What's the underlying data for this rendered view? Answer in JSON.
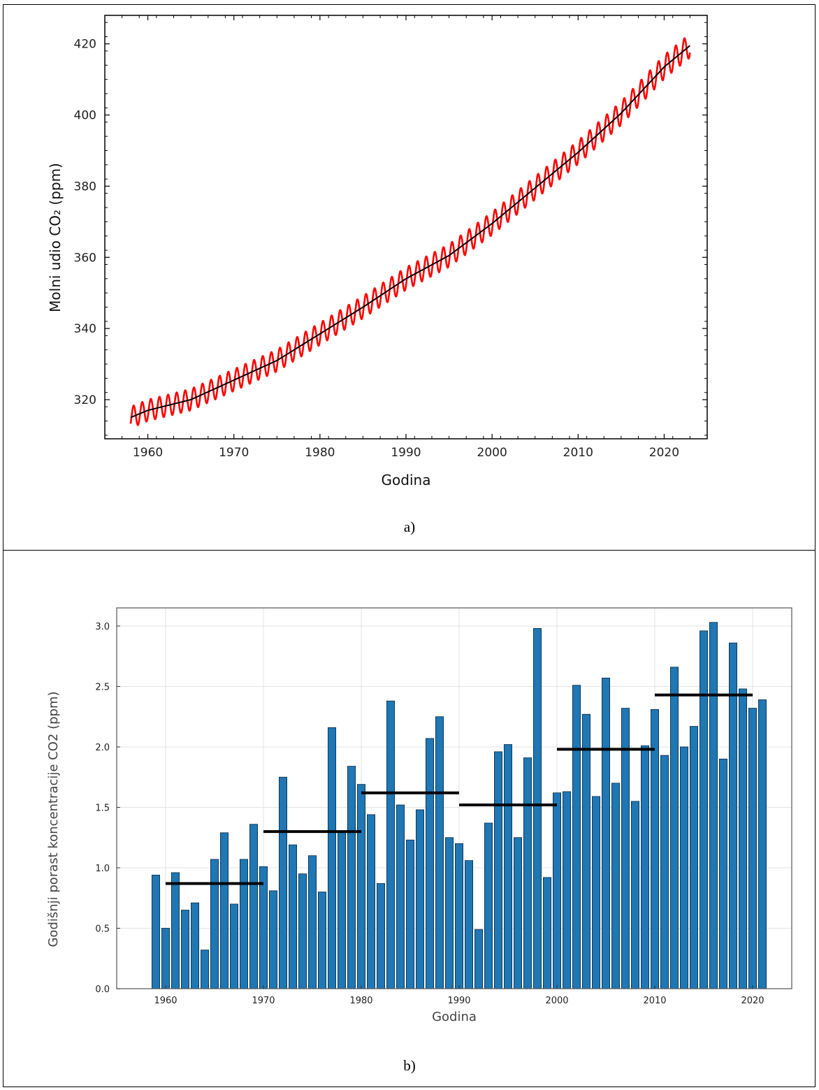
{
  "captions": {
    "a": "a)",
    "b": "b)"
  },
  "colors": {
    "seasonal": "#ff0000",
    "trend": "#000000",
    "bar": "#1f77b4",
    "bar_edge": "#0b2a44",
    "decade_mean": "#000000"
  },
  "chart_data": [
    {
      "type": "line",
      "xlabel": "Godina",
      "ylabel": "Molni udio CO₂ (ppm)",
      "xlim": [
        1955,
        2025
      ],
      "ylim": [
        309,
        428
      ],
      "xticks": [
        1960,
        1970,
        1980,
        1990,
        2000,
        2010,
        2020
      ],
      "yticks": [
        320,
        340,
        360,
        380,
        400,
        420
      ],
      "grid": false,
      "series": [
        {
          "kind": "monthly",
          "color": "#ff0000",
          "amplitude_ppm": 3,
          "x": [
            1958,
            1960,
            1965,
            1970,
            1975,
            1980,
            1985,
            1990,
            1995,
            2000,
            2005,
            2010,
            2015,
            2020,
            2023
          ],
          "values": [
            315,
            317,
            320,
            325.5,
            331,
            338.5,
            346,
            354,
            360.5,
            369.5,
            379.5,
            389.5,
            400.5,
            413.5,
            419.5
          ]
        },
        {
          "kind": "trend",
          "color": "#000000",
          "x": [
            1958,
            1960,
            1965,
            1970,
            1975,
            1980,
            1985,
            1990,
            1995,
            2000,
            2005,
            2010,
            2015,
            2020,
            2023
          ],
          "values": [
            315,
            317,
            320,
            325.5,
            331,
            338.5,
            346,
            354,
            360.5,
            369.5,
            379.5,
            389.5,
            400.5,
            413.5,
            419.5
          ]
        }
      ]
    },
    {
      "type": "bar",
      "xlabel": "Godina",
      "ylabel": "Godišnji porast koncentracije CO2 (ppm)",
      "xlim": [
        1955,
        2024
      ],
      "ylim": [
        0,
        3.15
      ],
      "xticks": [
        1960,
        1970,
        1980,
        1990,
        2000,
        2010,
        2020
      ],
      "yticks": [
        "0.0",
        "0.5",
        "1.0",
        "1.5",
        "2.0",
        "2.5",
        "3.0"
      ],
      "grid": true,
      "categories": [
        1959,
        1960,
        1961,
        1962,
        1963,
        1964,
        1965,
        1966,
        1967,
        1968,
        1969,
        1970,
        1971,
        1972,
        1973,
        1974,
        1975,
        1976,
        1977,
        1978,
        1979,
        1980,
        1981,
        1982,
        1983,
        1984,
        1985,
        1986,
        1987,
        1988,
        1989,
        1990,
        1991,
        1992,
        1993,
        1994,
        1995,
        1996,
        1997,
        1998,
        1999,
        2000,
        2001,
        2002,
        2003,
        2004,
        2005,
        2006,
        2007,
        2008,
        2009,
        2010,
        2011,
        2012,
        2013,
        2014,
        2015,
        2016,
        2017,
        2018,
        2019,
        2020,
        2021
      ],
      "values": [
        0.94,
        0.5,
        0.96,
        0.65,
        0.71,
        0.32,
        1.07,
        1.29,
        0.7,
        1.07,
        1.36,
        1.01,
        0.81,
        1.75,
        1.19,
        0.95,
        1.1,
        0.8,
        2.16,
        1.3,
        1.84,
        1.69,
        1.44,
        0.87,
        2.38,
        1.52,
        1.23,
        1.48,
        2.07,
        2.25,
        1.25,
        1.2,
        1.06,
        0.49,
        1.37,
        1.96,
        2.02,
        1.25,
        1.91,
        2.98,
        0.92,
        1.62,
        1.63,
        2.51,
        2.27,
        1.59,
        2.57,
        1.7,
        2.32,
        1.55,
        2.01,
        2.31,
        1.93,
        2.66,
        2.0,
        2.17,
        2.96,
        3.03,
        1.9,
        2.86,
        2.48,
        2.32,
        2.39
      ],
      "decade_means": [
        {
          "from": 1960,
          "to": 1970,
          "value": 0.87
        },
        {
          "from": 1970,
          "to": 1980,
          "value": 1.3
        },
        {
          "from": 1980,
          "to": 1990,
          "value": 1.62
        },
        {
          "from": 1990,
          "to": 2000,
          "value": 1.52
        },
        {
          "from": 2000,
          "to": 2010,
          "value": 1.98
        },
        {
          "from": 2010,
          "to": 2020,
          "value": 2.43
        }
      ]
    }
  ]
}
